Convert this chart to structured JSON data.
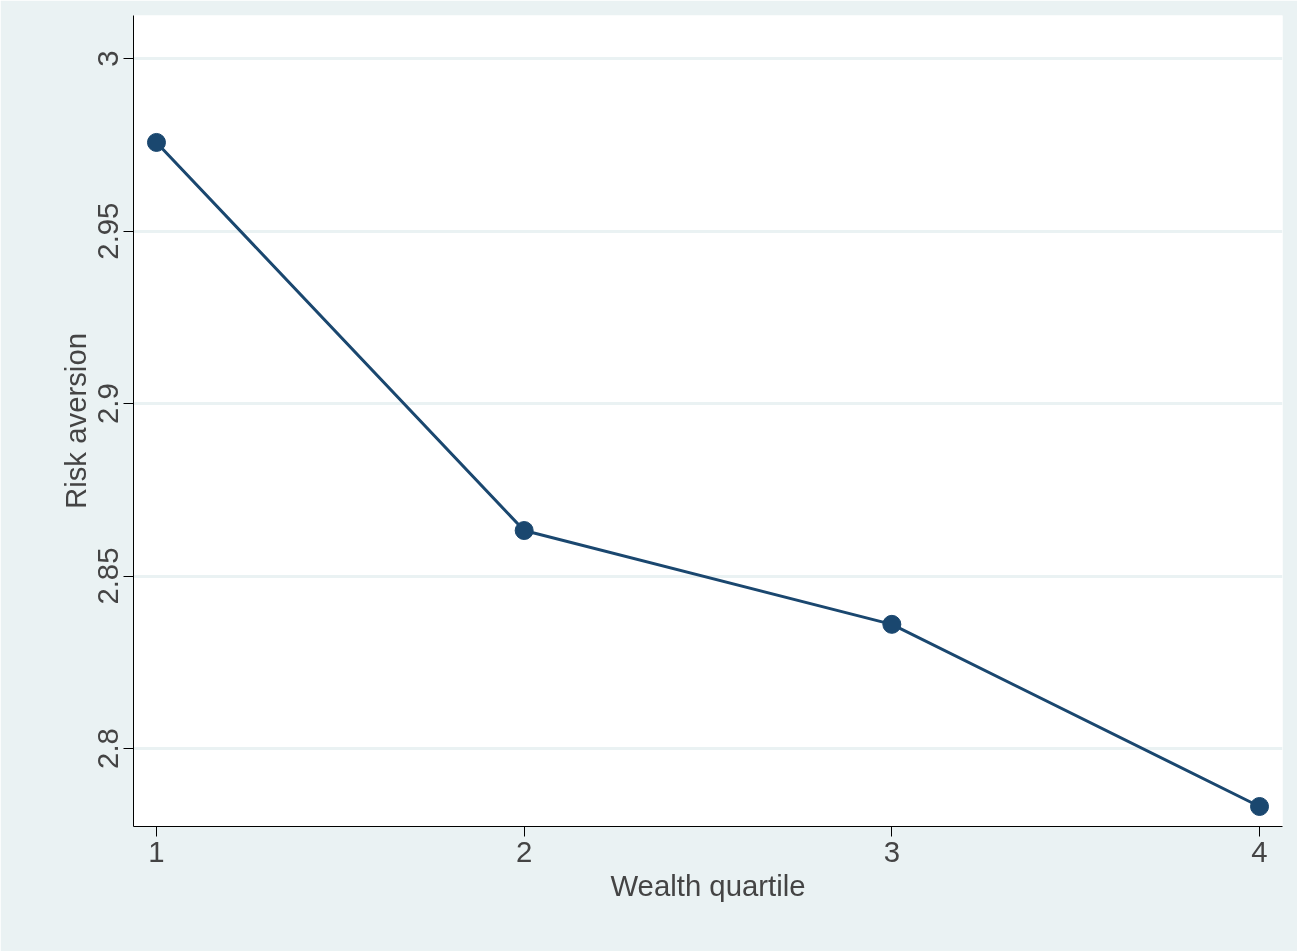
{
  "chart_data": {
    "type": "line",
    "xlabel": "Wealth quartile",
    "ylabel": "Risk aversion",
    "x": [
      1,
      2,
      3,
      4
    ],
    "series": [
      {
        "color": "#1a476f",
        "values": [
          2.9757,
          2.8632,
          2.836,
          2.7832
        ]
      }
    ],
    "xlim": [
      0.9375,
      4.0625
    ],
    "ylim": [
      2.7774,
      3.0125
    ],
    "xticks": [
      1,
      2,
      3,
      4
    ],
    "yticks": [
      2.8,
      2.85,
      2.9,
      2.95,
      3
    ],
    "grid": "y",
    "marker": "circle",
    "line_style": "solid"
  }
}
